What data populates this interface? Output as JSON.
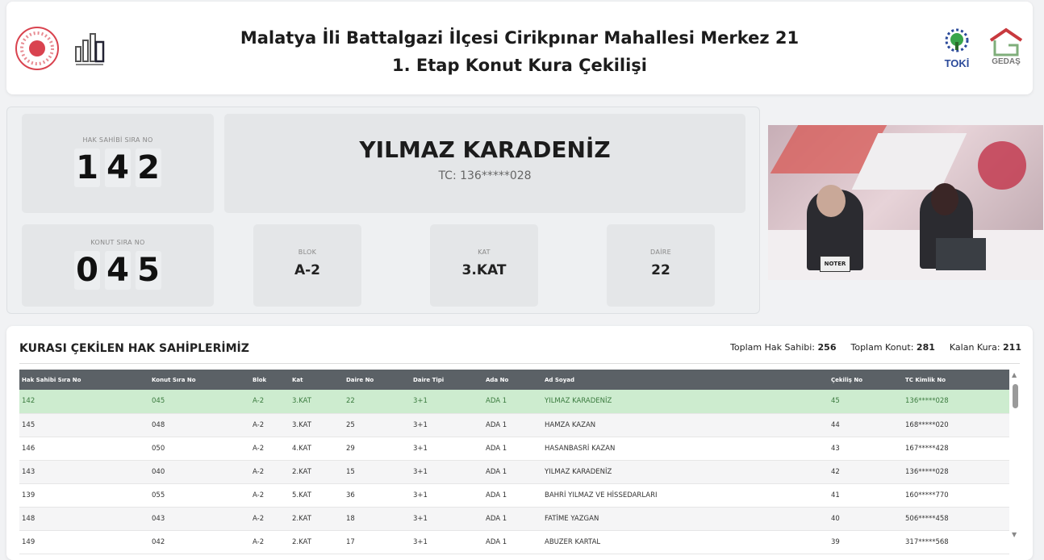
{
  "header": {
    "title_line1": "Malatya İli Battalgazi İlçesi Cirikpınar Mahallesi Merkez 21",
    "title_line2": "1. Etap Konut Kura Çekilişi",
    "logos_right": [
      "TOKİ",
      "GEDAŞ"
    ]
  },
  "current": {
    "hak_sahibi_label": "HAK SAHİBİ SIRA NO",
    "hak_sahibi_digits": [
      "1",
      "4",
      "2"
    ],
    "name": "YILMAZ KARADENİZ",
    "tc": "TC: 136*****028",
    "konut_label": "KONUT SIRA NO",
    "konut_digits": [
      "0",
      "4",
      "5"
    ],
    "blok_label": "BLOK",
    "blok": "A-2",
    "kat_label": "KAT",
    "kat": "3.KAT",
    "daire_label": "DAİRE",
    "daire": "22"
  },
  "video": {
    "sign": "NOTER"
  },
  "table": {
    "title": "KURASI ÇEKİLEN HAK SAHİPLERİMİZ",
    "stats": [
      {
        "label": "Toplam Hak Sahibi:",
        "value": "256"
      },
      {
        "label": "Toplam Konut:",
        "value": "281"
      },
      {
        "label": "Kalan Kura:",
        "value": "211"
      }
    ],
    "columns": [
      "Hak Sahibi Sıra No",
      "Konut Sıra No",
      "Blok",
      "Kat",
      "Daire No",
      "Daire Tipi",
      "Ada No",
      "Ad Soyad",
      "Çekiliş No",
      "TC Kimlik No"
    ],
    "rows": [
      [
        "142",
        "045",
        "A-2",
        "3.KAT",
        "22",
        "3+1",
        "ADA 1",
        "YILMAZ KARADENİZ",
        "45",
        "136*****028"
      ],
      [
        "145",
        "048",
        "A-2",
        "3.KAT",
        "25",
        "3+1",
        "ADA 1",
        "HAMZA KAZAN",
        "44",
        "168*****020"
      ],
      [
        "146",
        "050",
        "A-2",
        "4.KAT",
        "29",
        "3+1",
        "ADA 1",
        "HASANBASRİ KAZAN",
        "43",
        "167*****428"
      ],
      [
        "143",
        "040",
        "A-2",
        "2.KAT",
        "15",
        "3+1",
        "ADA 1",
        "YILMAZ KARADENİZ",
        "42",
        "136*****028"
      ],
      [
        "139",
        "055",
        "A-2",
        "5.KAT",
        "36",
        "3+1",
        "ADA 1",
        "BAHRİ YILMAZ VE HİSSEDARLARI",
        "41",
        "160*****770"
      ],
      [
        "148",
        "043",
        "A-2",
        "2.KAT",
        "18",
        "3+1",
        "ADA 1",
        "FATİME YAZGAN",
        "40",
        "506*****458"
      ],
      [
        "149",
        "042",
        "A-2",
        "2.KAT",
        "17",
        "3+1",
        "ADA 1",
        "ABUZER KARTAL",
        "39",
        "317*****568"
      ]
    ],
    "highlight_color": "#cdeccf"
  }
}
